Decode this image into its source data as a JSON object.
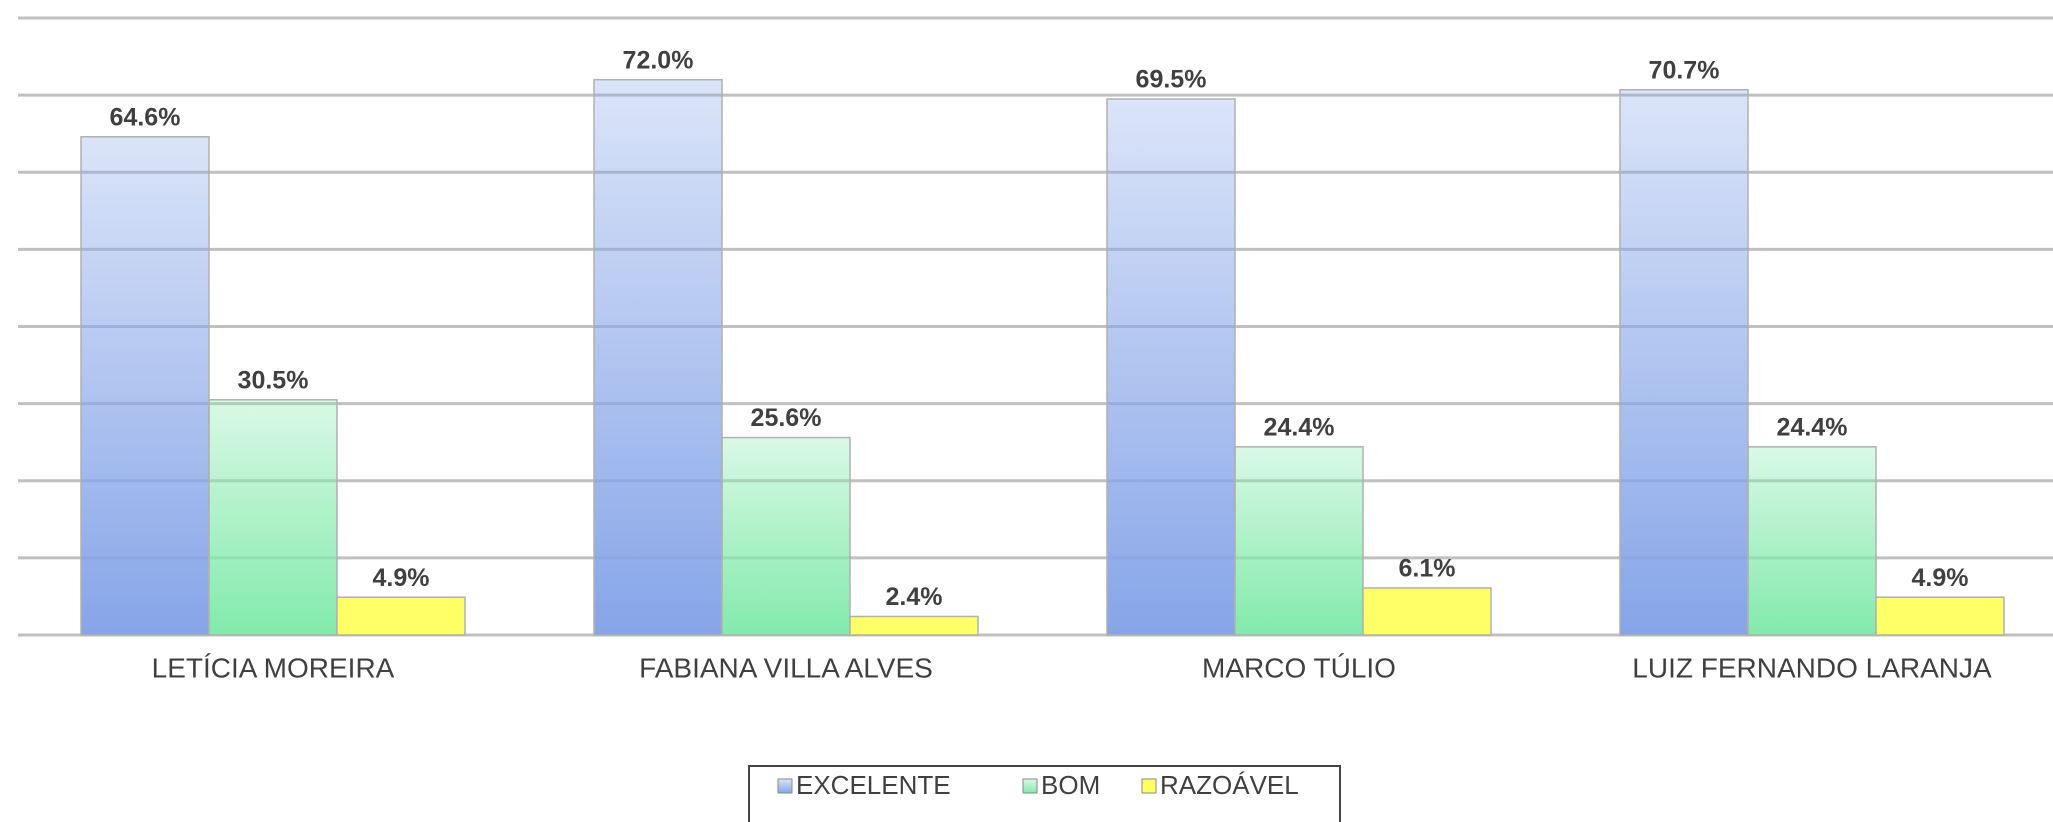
{
  "chart_data": {
    "type": "bar",
    "categories": [
      "LETÍCIA MOREIRA",
      "FABIANA VILLA ALVES",
      "MARCO TÚLIO",
      "LUIZ FERNANDO LARANJA"
    ],
    "series": [
      {
        "name": "EXCELENTE",
        "color": "#86a5e8",
        "values": [
          64.6,
          72.0,
          69.5,
          70.7
        ],
        "value_labels": [
          "64.6%",
          "72.0%",
          "69.5%",
          "70.7%"
        ]
      },
      {
        "name": "BOM",
        "color": "#82eaab",
        "values": [
          30.5,
          25.6,
          24.4,
          24.4
        ],
        "value_labels": [
          "30.5%",
          "25.6%",
          "24.4%",
          "24.4%"
        ]
      },
      {
        "name": "RAZOÁVEL",
        "color": "#ffff66",
        "values": [
          4.9,
          2.4,
          6.1,
          4.9
        ],
        "value_labels": [
          "4.9%",
          "2.4%",
          "6.1%",
          "4.9%"
        ]
      }
    ],
    "ylim": [
      0,
      80
    ],
    "yticks": [
      0,
      10,
      20,
      30,
      40,
      50,
      60,
      70,
      80
    ],
    "grid": true,
    "legend": "bottom"
  }
}
